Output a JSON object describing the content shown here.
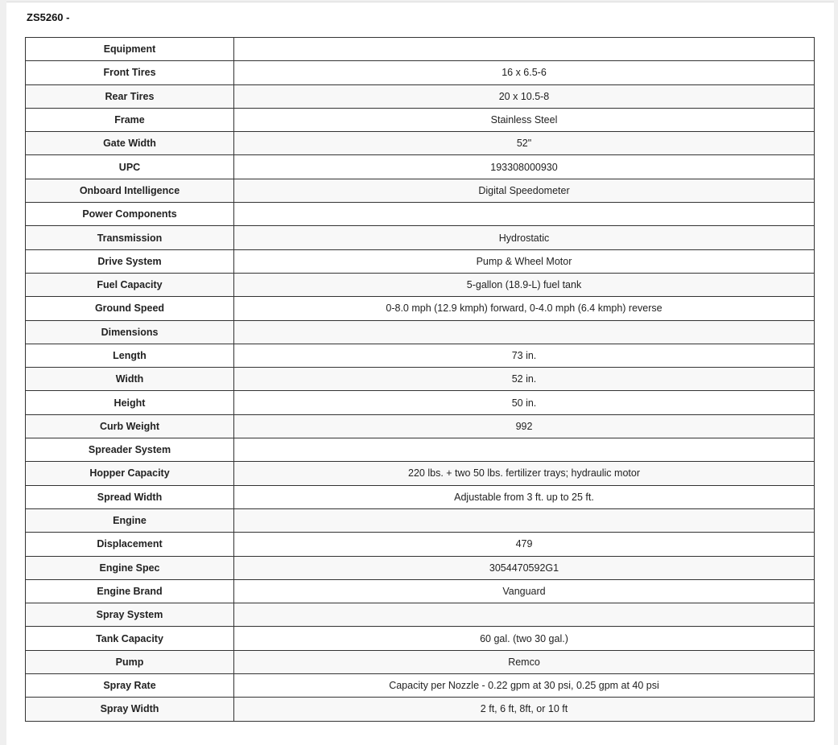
{
  "title": "ZS5260 -",
  "rows": [
    {
      "label": "Equipment",
      "value": ""
    },
    {
      "label": "Front Tires",
      "value": "16 x 6.5-6"
    },
    {
      "label": "Rear Tires",
      "value": "20 x 10.5-8"
    },
    {
      "label": "Frame",
      "value": "Stainless Steel"
    },
    {
      "label": "Gate Width",
      "value": "52\""
    },
    {
      "label": "UPC",
      "value": "193308000930"
    },
    {
      "label": "Onboard Intelligence",
      "value": "Digital Speedometer"
    },
    {
      "label": "Power Components",
      "value": ""
    },
    {
      "label": "Transmission",
      "value": "Hydrostatic"
    },
    {
      "label": "Drive System",
      "value": "Pump & Wheel Motor"
    },
    {
      "label": "Fuel Capacity",
      "value": "5-gallon (18.9-L) fuel tank"
    },
    {
      "label": "Ground Speed",
      "value": "0-8.0 mph (12.9 kmph) forward, 0-4.0 mph (6.4 kmph) reverse"
    },
    {
      "label": "Dimensions",
      "value": ""
    },
    {
      "label": "Length",
      "value": "73 in."
    },
    {
      "label": "Width",
      "value": "52 in."
    },
    {
      "label": "Height",
      "value": "50 in."
    },
    {
      "label": "Curb Weight",
      "value": "992"
    },
    {
      "label": "Spreader System",
      "value": ""
    },
    {
      "label": "Hopper Capacity",
      "value": "220 lbs. + two 50 lbs. fertilizer trays; hydraulic motor"
    },
    {
      "label": "Spread Width",
      "value": "Adjustable from 3 ft. up to 25 ft."
    },
    {
      "label": "Engine",
      "value": ""
    },
    {
      "label": "Displacement",
      "value": "479"
    },
    {
      "label": "Engine Spec",
      "value": "3054470592G1"
    },
    {
      "label": "Engine Brand",
      "value": "Vanguard"
    },
    {
      "label": "Spray System",
      "value": ""
    },
    {
      "label": "Tank Capacity",
      "value": "60 gal. (two 30 gal.)"
    },
    {
      "label": "Pump",
      "value": "Remco"
    },
    {
      "label": "Spray Rate",
      "value": "Capacity per Nozzle - 0.22 gpm at 30 psi, 0.25 gpm at 40 psi"
    },
    {
      "label": "Spray Width",
      "value": "2 ft, 6 ft, 8ft, or 10 ft"
    }
  ]
}
